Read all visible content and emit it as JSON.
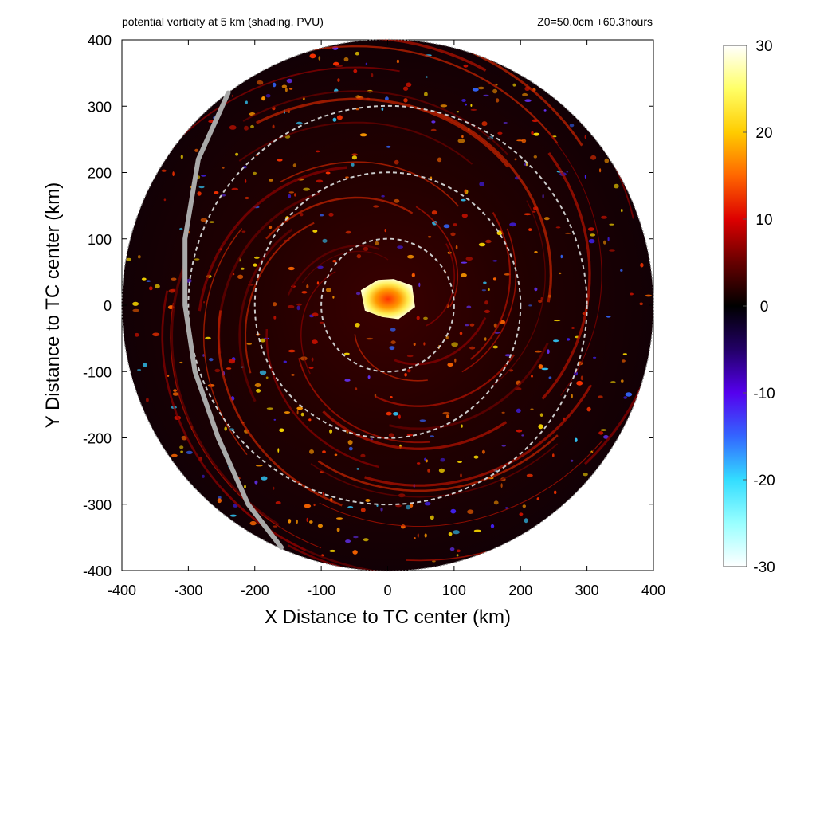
{
  "chart_data": {
    "type": "heatmap",
    "title": "potential vorticity at 5 km (shading, PVU)",
    "subtitle": "Z0=50.0cm  +60.3hours",
    "xlabel": "X Distance to TC center (km)",
    "ylabel": "Y Distance to TC center (km)",
    "xlim": [
      -400,
      400
    ],
    "ylim": [
      -400,
      400
    ],
    "x_ticks": [
      "-400",
      "-300",
      "-200",
      "-100",
      "0",
      "100",
      "200",
      "300",
      "400"
    ],
    "y_ticks": [
      "400",
      "300",
      "200",
      "100",
      "0",
      "-100",
      "-200",
      "-300",
      "-400"
    ],
    "domain_shape": "circle of radius 400 km centered on TC center",
    "range_rings_km": [
      100,
      200,
      300
    ],
    "range_ring_color": "#cccccc",
    "track_line_color": "#a9a9a9",
    "features": {
      "core_max_pv": 30,
      "core_radius_km": 40,
      "core_center_km": [
        0,
        10
      ]
    },
    "colorbar": {
      "min": -30,
      "max": 30,
      "tick_labels": [
        "30",
        "20",
        "10",
        "0",
        "-10",
        "-20",
        "-30"
      ],
      "stops": [
        {
          "value": 30,
          "color": "#ffffff"
        },
        {
          "value": 25,
          "color": "#ffff66"
        },
        {
          "value": 20,
          "color": "#ffcc00"
        },
        {
          "value": 15,
          "color": "#ff6600"
        },
        {
          "value": 10,
          "color": "#dd0000"
        },
        {
          "value": 5,
          "color": "#660000"
        },
        {
          "value": 0,
          "color": "#000000"
        },
        {
          "value": -5,
          "color": "#220066"
        },
        {
          "value": -10,
          "color": "#5500ee"
        },
        {
          "value": -15,
          "color": "#3366ff"
        },
        {
          "value": -20,
          "color": "#33ddff"
        },
        {
          "value": -25,
          "color": "#99ffff"
        },
        {
          "value": -30,
          "color": "#ffffff"
        }
      ]
    }
  }
}
